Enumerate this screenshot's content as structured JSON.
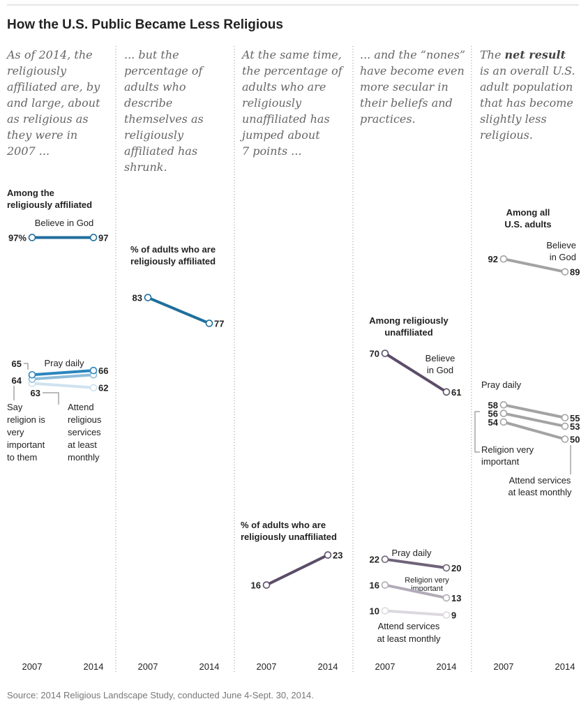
{
  "title": "How the U.S. Public Became Less Religious",
  "source": "Source: 2014 Religious Landscape Study, conducted June 4-Sept. 30, 2014.",
  "chart_data": [
    {
      "type": "slope",
      "intro": "As of 2014, the\nreligiously\naffiliated are, by\nand large, about\nas religious as\nthey were in\n2007 ...",
      "subtitle": "Among the\nreligiously affiliated",
      "categories": [
        "2007",
        "2014"
      ],
      "ylim": [
        0,
        100
      ],
      "series": [
        {
          "name": "Believe in God",
          "color": "#1f6e9c",
          "values": [
            97,
            97
          ],
          "value_labels": [
            "97%",
            "97"
          ]
        },
        {
          "name": "Pray daily",
          "color": "#2a85bd",
          "values": [
            65,
            66
          ],
          "value_labels": [
            "65",
            "66"
          ]
        },
        {
          "name": "Say\nreligion is\nvery\nimportant\nto them",
          "color": "#8fbddb",
          "values": [
            64,
            65
          ],
          "value_labels": [
            "64",
            null
          ]
        },
        {
          "name": "Attend\nreligious\nservices\nat least\nmonthly",
          "color": "#cfe2ef",
          "values": [
            63,
            62
          ],
          "value_labels": [
            "63",
            "62"
          ]
        }
      ]
    },
    {
      "type": "slope",
      "intro": "... but the\npercentage of\nadults who\ndescribe\nthemselves as\nreligiously\naffiliated has\nshrunk.",
      "subtitle": "% of adults who are\nreligiously affiliated",
      "categories": [
        "2007",
        "2014"
      ],
      "ylim": [
        0,
        100
      ],
      "series": [
        {
          "color": "#1f6e9c",
          "values": [
            83,
            77
          ],
          "value_labels": [
            "83",
            "77"
          ]
        }
      ]
    },
    {
      "type": "slope",
      "intro": "At the same time,\nthe percentage of\nadults who are\nreligiously\nunaffiliated has\njumped about\n7 points ...",
      "subtitle": "% of adults who are\nreligiously unaffiliated",
      "categories": [
        "2007",
        "2014"
      ],
      "ylim": [
        0,
        100
      ],
      "series": [
        {
          "color": "#5b4d68",
          "values": [
            16,
            23
          ],
          "value_labels": [
            "16",
            "23"
          ]
        }
      ]
    },
    {
      "type": "slope",
      "intro": "... and the “nones”\nhave become even\nmore secular in\ntheir beliefs and\npractices.",
      "subtitle": "Among religiously\nunaffiliated",
      "categories": [
        "2007",
        "2014"
      ],
      "ylim": [
        0,
        100
      ],
      "series": [
        {
          "name": "Believe\nin God",
          "color": "#5b4d68",
          "values": [
            70,
            61
          ],
          "value_labels": [
            "70",
            "61"
          ]
        },
        {
          "name": "Pray daily",
          "color": "#6f6379",
          "values": [
            22,
            20
          ],
          "value_labels": [
            "22",
            "20"
          ]
        },
        {
          "name": "Religion very\nimportant",
          "color": "#b3abb9",
          "values": [
            16,
            13
          ],
          "value_labels": [
            "16",
            "13"
          ]
        },
        {
          "name": "Attend services\nat least monthly",
          "color": "#dcd8e0",
          "values": [
            10,
            9
          ],
          "value_labels": [
            "10",
            "9"
          ]
        }
      ]
    },
    {
      "type": "slope",
      "intro": "The net result\nis an overall U.S.\nadult population\nthat has become\nslightly less\nreligious.",
      "intro_emphasis": "net result",
      "subtitle": "Among all\nU.S. adults",
      "categories": [
        "2007",
        "2014"
      ],
      "ylim": [
        0,
        100
      ],
      "series": [
        {
          "name": "Believe\nin God",
          "color": "#a3a3a3",
          "values": [
            92,
            89
          ],
          "value_labels": [
            "92",
            "89"
          ]
        },
        {
          "name": "Pray daily",
          "color": "#a3a3a3",
          "values": [
            58,
            55
          ],
          "value_labels": [
            "58",
            "55"
          ]
        },
        {
          "name": "Religion very\nimportant",
          "color": "#a3a3a3",
          "values": [
            56,
            53
          ],
          "value_labels": [
            "56",
            "53"
          ]
        },
        {
          "name": "Attend services\nat least monthly",
          "color": "#a3a3a3",
          "values": [
            54,
            50
          ],
          "value_labels": [
            "54",
            "50"
          ]
        }
      ]
    }
  ]
}
